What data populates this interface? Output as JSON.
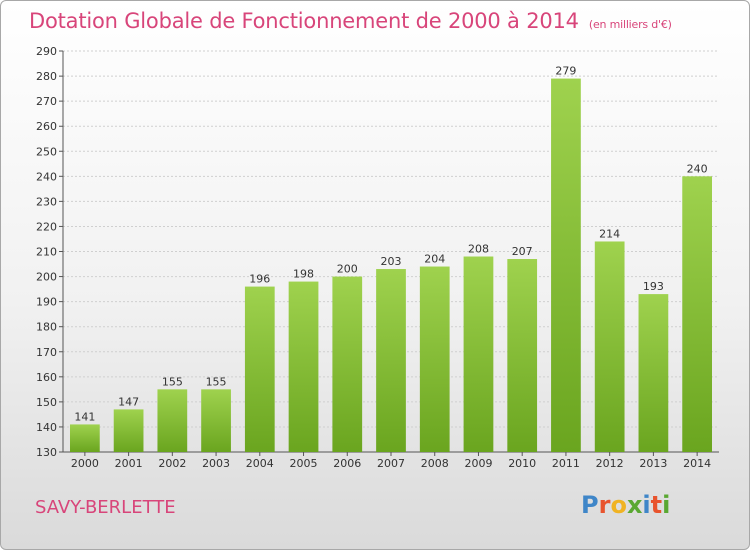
{
  "header": {
    "title": "Dotation Globale de Fonctionnement de 2000 à 2014",
    "subtitle": "(en milliers d'€)"
  },
  "footer": {
    "city": "SAVY-BERLETTE",
    "logo_letters": [
      "P",
      "r",
      "o",
      "x",
      "i",
      "t",
      "i"
    ]
  },
  "colors": {
    "accent": "#d8457a",
    "bar_top": "#9fd24e",
    "bar_bottom": "#6aa51f",
    "logo": [
      "#3f86c8",
      "#e8542e",
      "#f0b323",
      "#5aa832",
      "#3f86c8",
      "#e8542e",
      "#5aa832"
    ]
  },
  "chart_data": {
    "type": "bar",
    "categories": [
      "2000",
      "2001",
      "2002",
      "2003",
      "2004",
      "2005",
      "2006",
      "2007",
      "2008",
      "2009",
      "2010",
      "2011",
      "2012",
      "2013",
      "2014"
    ],
    "values": [
      141,
      147,
      155,
      155,
      196,
      198,
      200,
      203,
      204,
      208,
      207,
      279,
      214,
      193,
      240
    ],
    "ylim": [
      130,
      290
    ],
    "yticks": [
      130,
      140,
      150,
      160,
      170,
      180,
      190,
      200,
      210,
      220,
      230,
      240,
      250,
      260,
      270,
      280,
      290
    ],
    "grid": true
  }
}
